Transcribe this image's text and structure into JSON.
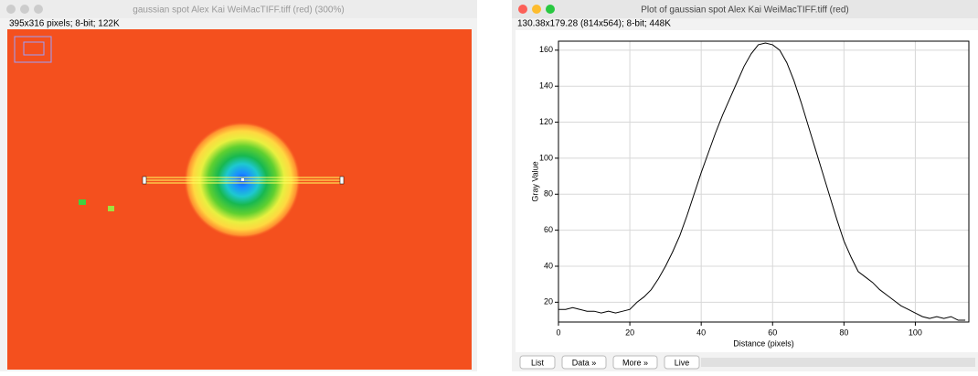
{
  "image_window": {
    "title": "gaussian spot Alex Kai WeiMacTIFF.tiff (red) (300%)",
    "info": "395x316 pixels; 8-bit; 122K"
  },
  "plot_window": {
    "title": "Plot of gaussian spot Alex Kai WeiMacTIFF.tiff (red)",
    "info": "130.38x179.28  (814x564); 8-bit; 448K",
    "buttons": [
      "List",
      "Data »",
      "More »",
      "Live"
    ]
  },
  "chart_data": {
    "type": "line",
    "x_label": "Distance (pixels)",
    "y_label": "Gray Value",
    "color": "#000000",
    "grid": true,
    "x": [
      0,
      2,
      4,
      6,
      8,
      10,
      12,
      14,
      16,
      18,
      20,
      22,
      24,
      26,
      28,
      30,
      32,
      34,
      36,
      38,
      40,
      42,
      44,
      46,
      48,
      50,
      52,
      54,
      56,
      58,
      60,
      62,
      64,
      66,
      68,
      70,
      72,
      74,
      76,
      78,
      80,
      82,
      84,
      86,
      88,
      90,
      92,
      94,
      96,
      98,
      100,
      102,
      104,
      106,
      108,
      110,
      112,
      114
    ],
    "values": [
      16,
      16,
      17,
      16,
      15,
      15,
      14,
      15,
      14,
      15,
      16,
      20,
      23,
      27,
      33,
      40,
      48,
      57,
      68,
      80,
      92,
      103,
      114,
      124,
      133,
      142,
      151,
      158,
      163,
      164,
      163,
      160,
      153,
      143,
      131,
      118,
      105,
      92,
      79,
      66,
      54,
      45,
      37,
      34,
      31,
      27,
      24,
      21,
      18,
      16,
      14,
      12,
      11,
      12,
      11,
      12,
      10,
      10
    ],
    "xlim": [
      0,
      115
    ],
    "ylim": [
      9,
      165
    ],
    "xticks": [
      0,
      20,
      40,
      60,
      80,
      100
    ],
    "yticks": [
      20,
      40,
      60,
      80,
      100,
      120,
      140,
      160
    ]
  }
}
